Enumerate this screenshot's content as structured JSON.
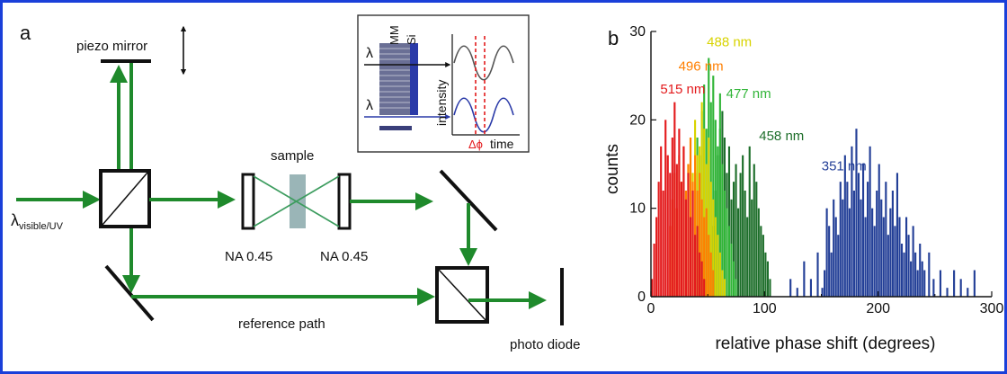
{
  "colors": {
    "frame": "#1a3fd9",
    "beam": "#1f8a2c",
    "beam_blue": "#2a3aa8",
    "red": "#e31a1c",
    "orange": "#ff7f00",
    "yellow": "#d8d300",
    "green": "#31b538",
    "darkgreen": "#1d6e2a",
    "navy": "#233f97",
    "gray_sample": "#9ab5b7"
  },
  "panel_a": {
    "label": "a",
    "piezo_label": "piezo mirror",
    "source_label": "λ",
    "source_sub": "visible/UV",
    "sample_label": "sample",
    "na_left": "NA 0.45",
    "na_right": "NA 0.45",
    "reference_label": "reference path",
    "detector_label": "photo diode",
    "inset": {
      "layer_mm": "MM",
      "layer_si": "Si",
      "lambda_top": "λ",
      "lambda_bottom": "λ",
      "intensity_label": "intensity",
      "phase_label": "Δϕ",
      "time_label": "time"
    }
  },
  "panel_b_label": "b",
  "chart_data": {
    "type": "bar",
    "xlabel": "relative phase shift (degrees)",
    "ylabel": "counts",
    "xlim": [
      0,
      300
    ],
    "ylim": [
      0,
      30
    ],
    "xticks": [
      "0",
      "100",
      "200",
      "300"
    ],
    "yticks": [
      "0",
      "10",
      "20",
      "30"
    ],
    "bin_width": 2,
    "series": [
      {
        "name": "351 nm",
        "color": "#233f97",
        "x": [
          122,
          128,
          134,
          140,
          146,
          150,
          152,
          154,
          156,
          158,
          160,
          162,
          164,
          166,
          168,
          170,
          172,
          174,
          176,
          178,
          180,
          182,
          184,
          186,
          188,
          190,
          192,
          194,
          196,
          198,
          200,
          202,
          204,
          206,
          208,
          210,
          212,
          214,
          216,
          218,
          220,
          222,
          224,
          226,
          228,
          230,
          232,
          234,
          236,
          238,
          240,
          244,
          248,
          254,
          260,
          266,
          272,
          278,
          284
        ],
        "values": [
          2,
          1,
          4,
          2,
          5,
          1,
          3,
          10,
          8,
          5,
          11,
          9,
          7,
          13,
          11,
          16,
          13,
          10,
          17,
          12,
          19,
          14,
          11,
          15,
          9,
          13,
          17,
          10,
          8,
          12,
          15,
          11,
          9,
          13,
          7,
          10,
          12,
          8,
          14,
          9,
          6,
          5,
          9,
          7,
          4,
          8,
          5,
          3,
          6,
          4,
          3,
          5,
          2,
          3,
          1,
          3,
          2,
          1,
          3
        ]
      },
      {
        "name": "458 nm",
        "color": "#1d6e2a",
        "x": [
          54,
          56,
          58,
          60,
          62,
          64,
          66,
          68,
          70,
          72,
          74,
          76,
          78,
          80,
          82,
          84,
          86,
          88,
          90,
          92,
          94,
          96,
          98,
          100,
          102,
          104
        ],
        "values": [
          8,
          12,
          16,
          19,
          21,
          18,
          14,
          17,
          11,
          13,
          15,
          10,
          14,
          16,
          12,
          9,
          17,
          11,
          15,
          13,
          10,
          8,
          7,
          5,
          4,
          2
        ]
      },
      {
        "name": "477 nm",
        "color": "#31b538",
        "x": [
          38,
          40,
          42,
          44,
          46,
          48,
          50,
          52,
          54,
          56,
          58,
          60,
          62,
          64,
          66,
          68,
          70,
          72,
          74
        ],
        "values": [
          14,
          18,
          16,
          21,
          24,
          19,
          27,
          22,
          25,
          20,
          17,
          23,
          15,
          12,
          10,
          8,
          6,
          4,
          2
        ]
      },
      {
        "name": "488 nm",
        "color": "#d8d300",
        "x": [
          30,
          32,
          34,
          36,
          38,
          40,
          42,
          44,
          46,
          48,
          50,
          52,
          54,
          56,
          58,
          60,
          62,
          64
        ],
        "values": [
          12,
          15,
          18,
          14,
          20,
          16,
          17,
          22,
          19,
          15,
          18,
          13,
          11,
          9,
          7,
          5,
          3,
          2
        ]
      },
      {
        "name": "496 nm",
        "color": "#ff7f00",
        "x": [
          16,
          18,
          20,
          22,
          24,
          26,
          28,
          30,
          32,
          34,
          36,
          38,
          40,
          42,
          44,
          46,
          48,
          50,
          52,
          54
        ],
        "values": [
          8,
          11,
          14,
          10,
          16,
          13,
          17,
          12,
          15,
          18,
          13,
          16,
          12,
          14,
          11,
          9,
          10,
          7,
          5,
          3
        ]
      },
      {
        "name": "515 nm",
        "color": "#e31a1c",
        "x": [
          0,
          2,
          4,
          6,
          8,
          10,
          12,
          14,
          16,
          18,
          20,
          22,
          24,
          26,
          28,
          30,
          32,
          34,
          36,
          38,
          40,
          42,
          44,
          46
        ],
        "values": [
          2,
          6,
          9,
          13,
          17,
          12,
          20,
          16,
          14,
          18,
          22,
          15,
          19,
          13,
          17,
          11,
          14,
          9,
          12,
          7,
          8,
          5,
          4,
          2
        ]
      }
    ],
    "annotations": [
      {
        "text": "515 nm",
        "x": 28,
        "y": 23,
        "color": "#e31a1c"
      },
      {
        "text": "496 nm",
        "x": 44,
        "y": 25.6,
        "color": "#ff7f00"
      },
      {
        "text": "488 nm",
        "x": 69,
        "y": 28.3,
        "color": "#d8d300"
      },
      {
        "text": "477 nm",
        "x": 86,
        "y": 22.5,
        "color": "#31b538"
      },
      {
        "text": "458 nm",
        "x": 115,
        "y": 17.7,
        "color": "#1d6e2a"
      },
      {
        "text": "351 nm",
        "x": 170,
        "y": 14.3,
        "color": "#233f97"
      }
    ]
  }
}
